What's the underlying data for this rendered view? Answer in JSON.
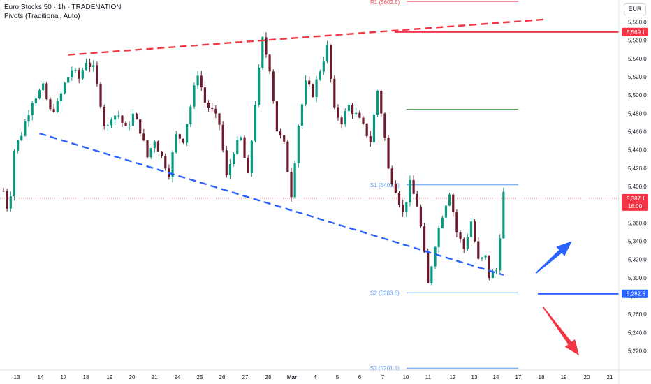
{
  "header": {
    "title": "Euro Stocks 50 · 1h · TRADENATION",
    "indicator": "Pivots (Traditional, Auto)",
    "currency": "EUR"
  },
  "colors": {
    "candle_up": "#089981",
    "candle_down": "#6d1a2c",
    "resistance_trend": "#f23645",
    "support_trend": "#2962ff",
    "resistance_level": "#f23645",
    "support_level": "#2962ff",
    "pivot_line": "#5b9cf6",
    "pivot_p_line": "#4caf50",
    "r1_line": "#f7525f",
    "arrow_up": "#2962ff",
    "arrow_down": "#f23645",
    "price_line": "#f23645",
    "axis_text": "#131722"
  },
  "chart_data": {
    "type": "candlestick",
    "title": "Euro Stocks 50 · 1h · TRADENATION",
    "y_ticks": [
      5220,
      5240,
      5260,
      5280,
      5300,
      5320,
      5340,
      5360,
      5380,
      5400,
      5420,
      5440,
      5460,
      5480,
      5500,
      5520,
      5540,
      5560,
      5580
    ],
    "y_tick_labels": [
      "5,220.0",
      "5,240.0",
      "5,260.0",
      "5,280.0",
      "5,300.0",
      "5,320.0",
      "5,340.0",
      "5,360.0",
      "5,380.0",
      "5,400.0",
      "5,420.0",
      "5,440.0",
      "5,460.0",
      "5,480.0",
      "5,500.0",
      "5,520.0",
      "5,540.0",
      "5,560.0",
      "5,580.0"
    ],
    "ylim": [
      5214,
      5594
    ],
    "x_tick_labels": [
      "13",
      "14",
      "17",
      "18",
      "19",
      "20",
      "21",
      "24",
      "25",
      "26",
      "27",
      "28",
      "Mar",
      "4",
      "5",
      "6",
      "7",
      "10",
      "11",
      "12",
      "13",
      "14",
      "17",
      "18",
      "19",
      "20",
      "21"
    ],
    "price_path": [
      [
        0,
        5395
      ],
      [
        1.5,
        5370
      ],
      [
        3,
        5440
      ],
      [
        5,
        5458
      ],
      [
        8,
        5495
      ],
      [
        11,
        5508
      ],
      [
        13,
        5482
      ],
      [
        15,
        5490
      ],
      [
        17,
        5512
      ],
      [
        19,
        5528
      ],
      [
        21,
        5518
      ],
      [
        23,
        5538
      ],
      [
        25,
        5528
      ],
      [
        27,
        5492
      ],
      [
        28.5,
        5458
      ],
      [
        30,
        5478
      ],
      [
        32,
        5478
      ],
      [
        34,
        5462
      ],
      [
        36,
        5478
      ],
      [
        38,
        5462
      ],
      [
        40,
        5432
      ],
      [
        42,
        5452
      ],
      [
        44,
        5432
      ],
      [
        46,
        5415
      ],
      [
        48,
        5455
      ],
      [
        50,
        5452
      ],
      [
        52,
        5488
      ],
      [
        54,
        5525
      ],
      [
        56,
        5492
      ],
      [
        58,
        5482
      ],
      [
        60,
        5468
      ],
      [
        62,
        5410
      ],
      [
        64,
        5440
      ],
      [
        66,
        5452
      ],
      [
        68,
        5410
      ],
      [
        70,
        5492
      ],
      [
        72,
        5560
      ],
      [
        74,
        5530
      ],
      [
        76,
        5462
      ],
      [
        78,
        5445
      ],
      [
        80,
        5392
      ],
      [
        82,
        5468
      ],
      [
        84,
        5512
      ],
      [
        86,
        5502
      ],
      [
        88,
        5528
      ],
      [
        90,
        5552
      ],
      [
        92,
        5482
      ],
      [
        94,
        5472
      ],
      [
        96,
        5488
      ],
      [
        98,
        5478
      ],
      [
        100,
        5465
      ],
      [
        102,
        5450
      ],
      [
        104,
        5505
      ],
      [
        105.5,
        5470
      ],
      [
        107,
        5418
      ],
      [
        109,
        5398
      ],
      [
        111,
        5370
      ],
      [
        113,
        5402
      ],
      [
        115,
        5380
      ],
      [
        116,
        5355
      ],
      [
        118,
        5292
      ],
      [
        120,
        5338
      ],
      [
        122,
        5370
      ],
      [
        124,
        5395
      ],
      [
        126,
        5350
      ],
      [
        128,
        5332
      ],
      [
        130,
        5362
      ],
      [
        132,
        5318
      ],
      [
        134,
        5322
      ],
      [
        135,
        5302
      ],
      [
        137,
        5308
      ],
      [
        138,
        5348
      ],
      [
        139,
        5392
      ]
    ],
    "last_price": 5387.1,
    "last_price_label": "5,387.1",
    "countdown": "16:00",
    "levels": [
      {
        "name": "Resistance",
        "value": 5569.1,
        "label": "5,569.1"
      },
      {
        "name": "Support",
        "value": 5282.5,
        "label": "5,282.5"
      }
    ],
    "pivots": [
      {
        "label": "R1 (5602.5)",
        "value": 5602.5
      },
      {
        "label": "",
        "value": 5484.5
      },
      {
        "label": "S1 (5401.7)",
        "value": 5401.7
      },
      {
        "label": "S2 (5283.6)",
        "value": 5283.6
      },
      {
        "label": "S3 (5201.1)",
        "value": 5201.1
      }
    ],
    "trendlines": [
      {
        "name": "resistance-trend",
        "points": [
          [
            18,
            5544
          ],
          [
            151,
            5583
          ]
        ]
      },
      {
        "name": "support-trend",
        "points": [
          [
            10,
            5458
          ],
          [
            139,
            5303
          ]
        ]
      }
    ],
    "arrows": [
      {
        "direction": "up",
        "from": [
          148,
          5305
        ],
        "to": [
          158,
          5340
        ]
      },
      {
        "direction": "down",
        "from": [
          150,
          5268
        ],
        "to": [
          160,
          5215
        ]
      }
    ]
  }
}
